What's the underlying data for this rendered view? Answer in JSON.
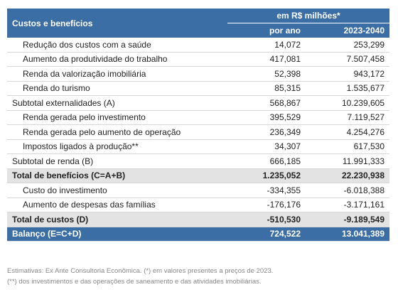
{
  "header": {
    "title": "Custos e benefícios",
    "unit": "em R$ milhões*",
    "columns": [
      "por ano",
      "2023-2040"
    ]
  },
  "table": {
    "rows": [
      [
        "Redução dos custos com a saúde",
        "14,072",
        "253,299"
      ],
      [
        "Aumento da produtividade do trabalho",
        "417,081",
        "7.507,458"
      ],
      [
        "Renda da valorização imobiliária",
        "52,398",
        "943,172"
      ],
      [
        "Renda do turismo",
        "85,315",
        "1.535,677"
      ],
      [
        "Subtotal externalidades (A)",
        "568,867",
        "10.239,605"
      ],
      [
        "Renda gerada pelo investimento",
        "395,529",
        "7.119,527"
      ],
      [
        "Renda gerada pelo aumento de operação",
        "236,349",
        "4.254,276"
      ],
      [
        "Impostos ligados à produção**",
        "34,307",
        "617,530"
      ],
      [
        "Subtotal de renda (B)",
        "666,185",
        "11.991,333"
      ],
      [
        "Total de benefícios (C=A+B)",
        "1.235,052",
        "22.230,938"
      ],
      [
        "Custo do investimento",
        "-334,355",
        "-6.018,388"
      ],
      [
        "Aumento de despesas das famílias",
        "-176,176",
        "-3.171,161"
      ],
      [
        "Total de custos (D)",
        "-510,530",
        "-9.189,549"
      ],
      [
        "Balanço (E=C+D)",
        "724,522",
        "13.041,389"
      ]
    ]
  },
  "footnotes": [
    "Estimativas: Ex Ante Consultoria Econômica. (*) em valores presentes a preços de 2023.",
    "(**) dos investimentos e das operações de saneamento e das atividades imobiliárias."
  ]
}
